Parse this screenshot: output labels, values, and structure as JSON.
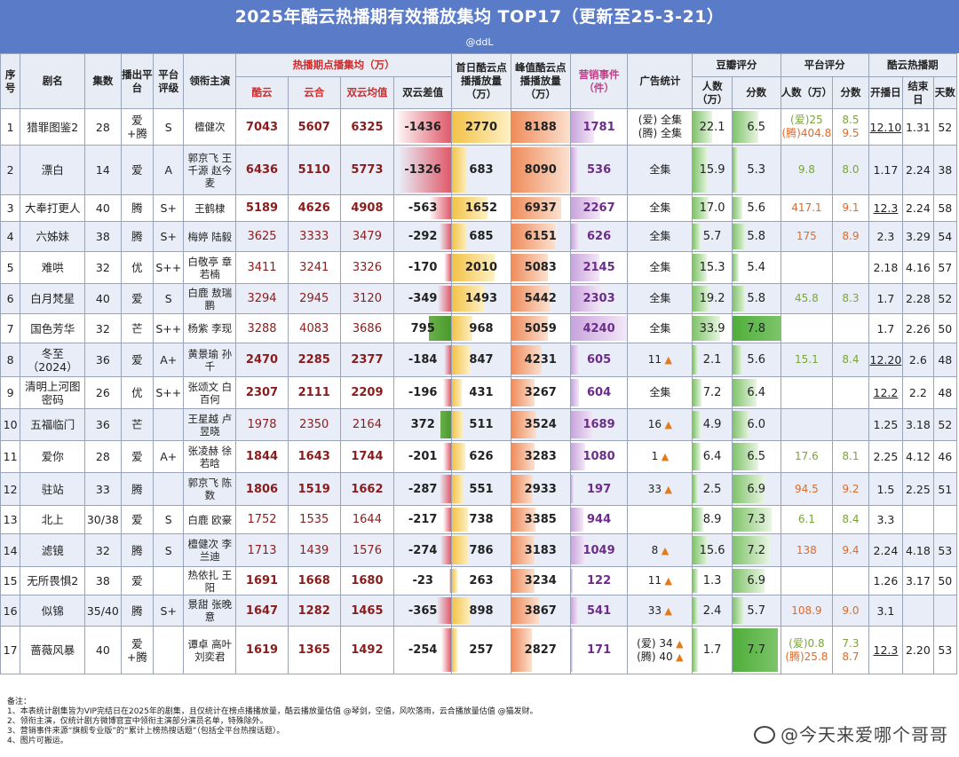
{
  "title": "2025年酷云热播期有效播放集均 TOP17（更新至25-3-21）",
  "byline": "@ddL",
  "headers": {
    "rank": "序号",
    "name": "剧名",
    "episodes": "集数",
    "platform": "播出平台",
    "rating": "平台评级",
    "cast": "领衔主演",
    "hot_group": "热播期点播集均（万）",
    "kuyun": "酷云",
    "yunhe": "云合",
    "avg": "双云均值",
    "diff": "双云差值",
    "firstday": "首日酷云点播播放量（万）",
    "peak": "峰值酷云点播播放量（万）",
    "marketing": "营销事件（件）",
    "ads": "广告统计",
    "douban_group": "豆瓣评分",
    "db_people": "人数（万）",
    "db_score": "分数",
    "plat_group": "平台评分",
    "plat_people": "人数（万）",
    "plat_score": "分数",
    "hotperiod_group": "酷云热播期",
    "start": "开播日",
    "end": "结束日",
    "days": "天数"
  },
  "rows": [
    {
      "rank": "1",
      "name": "猎罪图鉴2",
      "eps": "28",
      "plat": "爱+腾",
      "rate": "S",
      "cast": "檀健次",
      "ky": "7043",
      "yh": "5607",
      "avg": "6325",
      "diff": "-1436",
      "fd": "2770",
      "pk": "8188",
      "mk": "1781",
      "ad1": "(爱) 全集",
      "ad2": "(腾) 全集",
      "dbp": "22.1",
      "dbs": "6.5",
      "pp1": "(爱)25",
      "pp2": "(腾)404.8",
      "ps1": "8.5",
      "ps2": "9.5",
      "st": "12.10",
      "en": "1.31",
      "dy": "52"
    },
    {
      "rank": "2",
      "name": "漂白",
      "eps": "14",
      "plat": "爱",
      "rate": "A",
      "cast": "郭京飞 王千源 赵今麦",
      "ky": "6436",
      "yh": "5110",
      "avg": "5773",
      "diff": "-1326",
      "fd": "683",
      "pk": "8090",
      "mk": "536",
      "ad1": "全集",
      "ad2": "",
      "dbp": "15.9",
      "dbs": "5.3",
      "pp1": "9.8",
      "pp2": "",
      "ps1": "8.0",
      "ps2": "",
      "st": "1.17",
      "en": "2.24",
      "dy": "38"
    },
    {
      "rank": "3",
      "name": "大奉打更人",
      "eps": "40",
      "plat": "腾",
      "rate": "S+",
      "cast": "王鹤棣",
      "ky": "5189",
      "yh": "4626",
      "avg": "4908",
      "diff": "-563",
      "fd": "1652",
      "pk": "6937",
      "mk": "2267",
      "ad1": "全集",
      "ad2": "",
      "dbp": "17.0",
      "dbs": "5.6",
      "pp1": "417.1",
      "pp2": "",
      "ps1": "9.1",
      "ps2": "",
      "st": "12.3",
      "en": "2.24",
      "dy": "58"
    },
    {
      "rank": "4",
      "name": "六姊妹",
      "eps": "38",
      "plat": "腾",
      "rate": "S+",
      "cast": "梅婷 陆毅",
      "ky": "3625",
      "yh": "3333",
      "avg": "3479",
      "diff": "-292",
      "fd": "685",
      "pk": "6151",
      "mk": "626",
      "ad1": "全集",
      "ad2": "",
      "dbp": "5.7",
      "dbs": "5.8",
      "pp1": "175",
      "pp2": "",
      "ps1": "8.9",
      "ps2": "",
      "st": "2.3",
      "en": "3.29",
      "dy": "54"
    },
    {
      "rank": "5",
      "name": "难哄",
      "eps": "32",
      "plat": "优",
      "rate": "S++",
      "cast": "白敬亭 章若楠",
      "ky": "3411",
      "yh": "3241",
      "avg": "3326",
      "diff": "-170",
      "fd": "2010",
      "pk": "5083",
      "mk": "2145",
      "ad1": "全集",
      "ad2": "",
      "dbp": "15.3",
      "dbs": "5.4",
      "pp1": "",
      "pp2": "",
      "ps1": "",
      "ps2": "",
      "st": "2.18",
      "en": "4.16",
      "dy": "57"
    },
    {
      "rank": "6",
      "name": "白月梵星",
      "eps": "40",
      "plat": "爱",
      "rate": "S",
      "cast": "白鹿 敖瑞鹏",
      "ky": "3294",
      "yh": "2945",
      "avg": "3120",
      "diff": "-349",
      "fd": "1493",
      "pk": "5442",
      "mk": "2303",
      "ad1": "全集",
      "ad2": "",
      "dbp": "19.2",
      "dbs": "5.8",
      "pp1": "45.8",
      "pp2": "",
      "ps1": "8.3",
      "ps2": "",
      "st": "1.7",
      "en": "2.28",
      "dy": "52"
    },
    {
      "rank": "7",
      "name": "国色芳华",
      "eps": "32",
      "plat": "芒",
      "rate": "S++",
      "cast": "杨紫 李现",
      "ky": "3288",
      "yh": "4083",
      "avg": "3686",
      "diff": "795",
      "fd": "968",
      "pk": "5059",
      "mk": "4240",
      "ad1": "全集",
      "ad2": "",
      "dbp": "33.9",
      "dbs": "7.8",
      "pp1": "",
      "pp2": "",
      "ps1": "",
      "ps2": "",
      "st": "1.7",
      "en": "2.26",
      "dy": "50"
    },
    {
      "rank": "8",
      "name": "冬至（2024）",
      "eps": "36",
      "plat": "爱",
      "rate": "A+",
      "cast": "黄景瑜 孙千",
      "ky": "2470",
      "yh": "2285",
      "avg": "2377",
      "diff": "-184",
      "fd": "847",
      "pk": "4231",
      "mk": "605",
      "ad1": "11",
      "ad2": "",
      "dbp": "2.1",
      "dbs": "5.6",
      "pp1": "15.1",
      "pp2": "",
      "ps1": "8.4",
      "ps2": "",
      "st": "12.20",
      "en": "2.6",
      "dy": "48"
    },
    {
      "rank": "9",
      "name": "清明上河图密码",
      "eps": "26",
      "plat": "优",
      "rate": "S++",
      "cast": "张颂文 白百何",
      "ky": "2307",
      "yh": "2111",
      "avg": "2209",
      "diff": "-196",
      "fd": "431",
      "pk": "3267",
      "mk": "604",
      "ad1": "全集",
      "ad2": "",
      "dbp": "7.2",
      "dbs": "6.4",
      "pp1": "",
      "pp2": "",
      "ps1": "",
      "ps2": "",
      "st": "12.2",
      "en": "2.2",
      "dy": "48"
    },
    {
      "rank": "10",
      "name": "五福临门",
      "eps": "36",
      "plat": "芒",
      "rate": "",
      "cast": "王星越 卢昱晓",
      "ky": "1978",
      "yh": "2350",
      "avg": "2164",
      "diff": "372",
      "fd": "511",
      "pk": "3524",
      "mk": "1689",
      "ad1": "16",
      "ad2": "",
      "dbp": "4.9",
      "dbs": "6.0",
      "pp1": "",
      "pp2": "",
      "ps1": "",
      "ps2": "",
      "st": "1.25",
      "en": "3.18",
      "dy": "52"
    },
    {
      "rank": "11",
      "name": "爱你",
      "eps": "28",
      "plat": "爱",
      "rate": "A+",
      "cast": "张凌赫 徐若晗",
      "ky": "1844",
      "yh": "1643",
      "avg": "1744",
      "diff": "-201",
      "fd": "626",
      "pk": "3283",
      "mk": "1080",
      "ad1": "1",
      "ad2": "",
      "dbp": "6.4",
      "dbs": "6.5",
      "pp1": "17.6",
      "pp2": "",
      "ps1": "8.1",
      "ps2": "",
      "st": "2.25",
      "en": "4.12",
      "dy": "46"
    },
    {
      "rank": "12",
      "name": "驻站",
      "eps": "33",
      "plat": "腾",
      "rate": "",
      "cast": "郭京飞 陈数",
      "ky": "1806",
      "yh": "1519",
      "avg": "1662",
      "diff": "-287",
      "fd": "551",
      "pk": "2933",
      "mk": "197",
      "ad1": "33",
      "ad2": "",
      "dbp": "2.5",
      "dbs": "6.9",
      "pp1": "94.5",
      "pp2": "",
      "ps1": "9.2",
      "ps2": "",
      "st": "1.5",
      "en": "2.25",
      "dy": "51"
    },
    {
      "rank": "13",
      "name": "北上",
      "eps": "30/38",
      "plat": "爱",
      "rate": "S",
      "cast": "白鹿 欧豪",
      "ky": "1752",
      "yh": "1535",
      "avg": "1644",
      "diff": "-217",
      "fd": "738",
      "pk": "3385",
      "mk": "944",
      "ad1": "",
      "ad2": "",
      "dbp": "8.9",
      "dbs": "7.3",
      "pp1": "6.1",
      "pp2": "",
      "ps1": "8.4",
      "ps2": "",
      "st": "3.3",
      "en": "",
      "dy": ""
    },
    {
      "rank": "14",
      "name": "滤镜",
      "eps": "32",
      "plat": "腾",
      "rate": "S",
      "cast": "檀健次 李兰迪",
      "ky": "1713",
      "yh": "1439",
      "avg": "1576",
      "diff": "-274",
      "fd": "786",
      "pk": "3183",
      "mk": "1049",
      "ad1": "8",
      "ad2": "",
      "dbp": "15.6",
      "dbs": "7.2",
      "pp1": "138",
      "pp2": "",
      "ps1": "9.4",
      "ps2": "",
      "st": "2.24",
      "en": "4.18",
      "dy": "53"
    },
    {
      "rank": "15",
      "name": "无所畏惧2",
      "eps": "38",
      "plat": "爱",
      "rate": "",
      "cast": "热依扎 王阳",
      "ky": "1691",
      "yh": "1668",
      "avg": "1680",
      "diff": "-23",
      "fd": "263",
      "pk": "3234",
      "mk": "122",
      "ad1": "11",
      "ad2": "",
      "dbp": "1.3",
      "dbs": "6.9",
      "pp1": "",
      "pp2": "",
      "ps1": "",
      "ps2": "",
      "st": "1.26",
      "en": "3.17",
      "dy": "50"
    },
    {
      "rank": "16",
      "name": "似锦",
      "eps": "35/40",
      "plat": "腾",
      "rate": "S+",
      "cast": "景甜 张晚意",
      "ky": "1647",
      "yh": "1282",
      "avg": "1465",
      "diff": "-365",
      "fd": "898",
      "pk": "3867",
      "mk": "541",
      "ad1": "33",
      "ad2": "",
      "dbp": "2.4",
      "dbs": "5.7",
      "pp1": "108.9",
      "pp2": "",
      "ps1": "9.0",
      "ps2": "",
      "st": "3.1",
      "en": "",
      "dy": ""
    },
    {
      "rank": "17",
      "name": "蔷薇风暴",
      "eps": "40",
      "plat": "爱+腾",
      "rate": "",
      "cast": "谭卓 高叶 刘奕君",
      "ky": "1619",
      "yh": "1365",
      "avg": "1492",
      "diff": "-254",
      "fd": "257",
      "pk": "2827",
      "mk": "171",
      "ad1": "(爱) 34",
      "ad2": "(腾) 40",
      "dbp": "1.7",
      "dbs": "7.7",
      "pp1": "(爱)0.8",
      "pp2": "(腾)25.8",
      "ps1": "7.3",
      "ps2": "8.7",
      "st": "12.3",
      "en": "2.20",
      "dy": "53"
    }
  ],
  "notes": [
    "备注：",
    "1、本表统计剧集皆为VIP完结日在2025年的剧集，且仅统计在榜点播播放量，酷云播放量估值 @琴剑，空值，风吹落雨，云合播放量估值 @猫发财。",
    "2、领衔主演，仅统计剧方微博官宣中领衔主演部分演员名单，特殊除外。",
    "3、营销事件来源“旗舰专业版”的“累计上榜热搜话题”（包括全平台热搜话题）。",
    "4、图片可搬运。"
  ],
  "watermark": "@今天来爱哪个哥哥",
  "colors": {
    "header_blue": "#5a7bc7",
    "row_alt": "#e9edf7",
    "neg_bar": "#e05a6a",
    "pos_bar": "#4a9a2c",
    "firstday_bar": "#f3c247",
    "peak_bar": "#ef8c5b",
    "marketing_bar": "#c9a3dc",
    "score_bar": "#7fc36a"
  },
  "icons": {
    "carrot": "carrot-icon"
  }
}
